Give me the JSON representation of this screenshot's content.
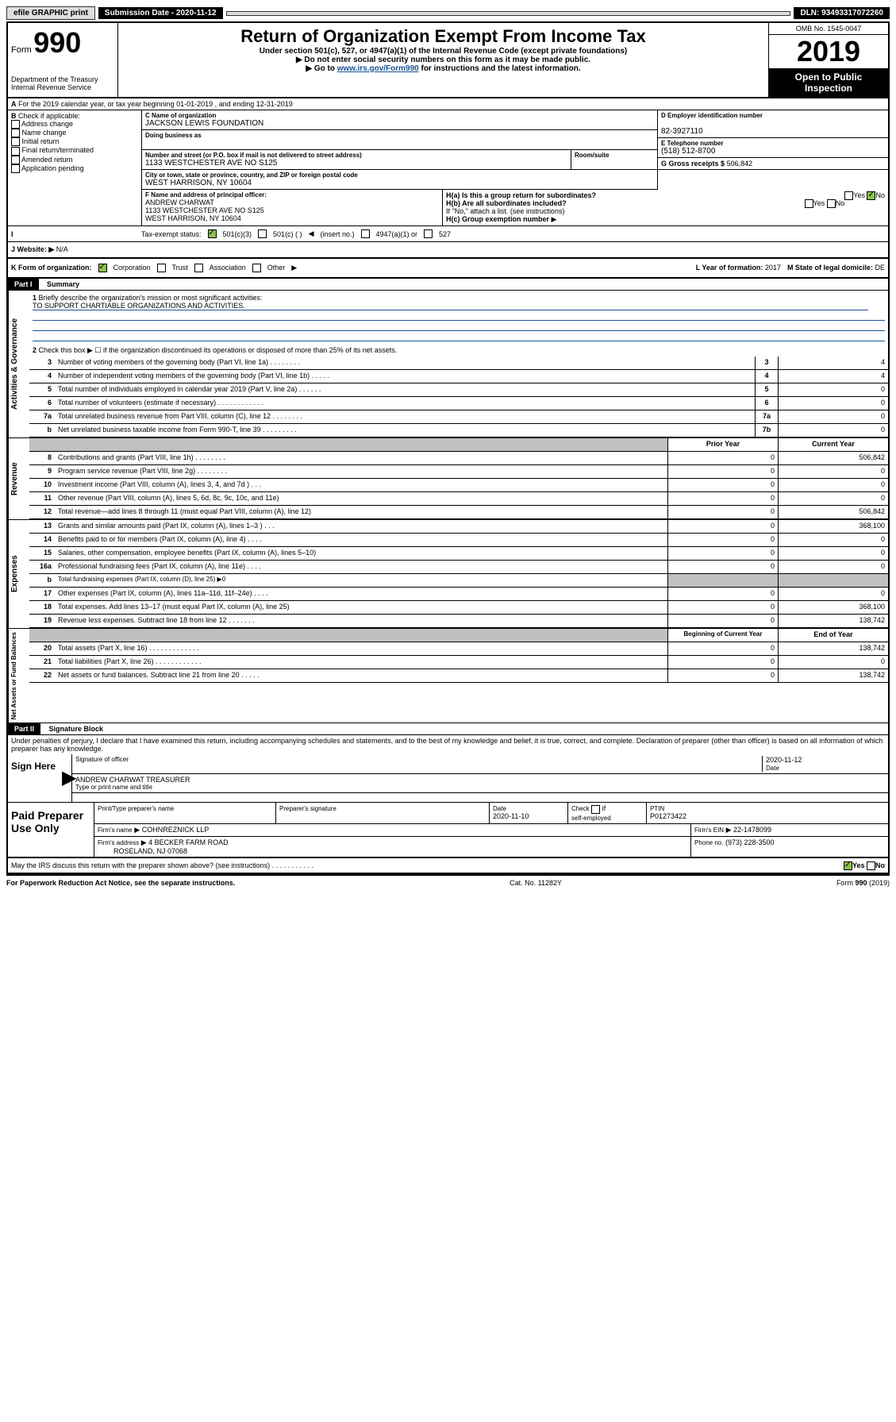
{
  "header": {
    "efile": "efile GRAPHIC print",
    "submission_label": "Submission Date - 2020-11-12",
    "dln": "DLN: 93493317072260",
    "form_label": "Form",
    "form_num": "990",
    "title": "Return of Organization Exempt From Income Tax",
    "subtitle": "Under section 501(c), 527, or 4947(a)(1) of the Internal Revenue Code (except private foundations)",
    "warn1": "Do not enter social security numbers on this form as it may be made public.",
    "warn2_pre": "Go to ",
    "warn2_link": "www.irs.gov/Form990",
    "warn2_post": " for instructions and the latest information.",
    "omb": "OMB No. 1545-0047",
    "year": "2019",
    "open": "Open to Public Inspection",
    "dept": "Department of the Treasury\nInternal Revenue Service"
  },
  "a": {
    "text": "For the 2019 calendar year, or tax year beginning 01-01-2019    , and ending 12-31-2019"
  },
  "b": {
    "label": "Check if applicable:",
    "items": [
      "Address change",
      "Name change",
      "Initial return",
      "Final return/terminated",
      "Amended return",
      "Application pending"
    ]
  },
  "c": {
    "name_lbl": "C Name of organization",
    "name": "JACKSON LEWIS FOUNDATION",
    "dba_lbl": "Doing business as",
    "addr_lbl": "Number and street (or P.O. box if mail is not delivered to street address)",
    "addr": "1133 WESTCHESTER AVE NO S125",
    "room_lbl": "Room/suite",
    "city_lbl": "City or town, state or province, country, and ZIP or foreign postal code",
    "city": "WEST HARRISON, NY  10604"
  },
  "d": {
    "lbl": "D Employer identification number",
    "val": "82-3927110"
  },
  "e": {
    "lbl": "E Telephone number",
    "val": "(518) 512-8700"
  },
  "g": {
    "lbl": "G Gross receipts $",
    "val": "506,842"
  },
  "f": {
    "lbl": "F  Name and address of principal officer:",
    "name": "ANDREW CHARWAT",
    "addr1": "1133 WESTCHESTER AVE NO S125",
    "addr2": "WEST HARRISON, NY  10604"
  },
  "h": {
    "a_lbl": "H(a)  Is this a group return for subordinates?",
    "b_lbl": "H(b)  Are all subordinates included?",
    "b_note": "If \"No,\" attach a list. (see instructions)",
    "c_lbl": "H(c)  Group exemption number",
    "yes": "Yes",
    "no": "No"
  },
  "i": {
    "lbl": "Tax-exempt status:",
    "opts": [
      "501(c)(3)",
      "501(c) (  )",
      "(insert no.)",
      "4947(a)(1) or",
      "527"
    ]
  },
  "j": {
    "lbl": "Website:",
    "val": "N/A"
  },
  "k": {
    "lbl": "K Form of organization:",
    "opts": [
      "Corporation",
      "Trust",
      "Association",
      "Other"
    ]
  },
  "l": {
    "lbl": "L Year of formation:",
    "val": "2017"
  },
  "m": {
    "lbl": "M State of legal domicile:",
    "val": "DE"
  },
  "part1": {
    "hdr": "Part I",
    "title": "Summary",
    "l1_lbl": "Briefly describe the organization's mission or most significant activities:",
    "l1_val": "TO SUPPORT CHARTIABLE ORGANIZATIONS AND ACTIVITIES.",
    "l2": "Check this box ▶ ☐  if the organization discontinued its operations or disposed of more than 25% of its net assets.",
    "lines": [
      {
        "n": "3",
        "t": "Number of voting members of the governing body (Part VI, line 1a)   .    .    .    .    .    .    .    .",
        "b": "3",
        "v": "4"
      },
      {
        "n": "4",
        "t": "Number of independent voting members of the governing body (Part VI, line 1b)    .    .    .    .    .",
        "b": "4",
        "v": "4"
      },
      {
        "n": "5",
        "t": "Total number of individuals employed in calendar year 2019 (Part V, line 2a)    .    .    .    .    .    .",
        "b": "5",
        "v": "0"
      },
      {
        "n": "6",
        "t": "Total number of volunteers (estimate if necessary)    .    .    .    .    .    .    .    .    .    .    .    .",
        "b": "6",
        "v": "0"
      },
      {
        "n": "7a",
        "t": "Total unrelated business revenue from Part VIII, column (C), line 12   .    .    .    .    .    .    .    .",
        "b": "7a",
        "v": "0"
      },
      {
        "n": "b",
        "t": "Net unrelated business taxable income from Form 990-T, line 39   .    .    .    .    .    .    .    .    .",
        "b": "7b",
        "v": "0"
      }
    ],
    "prior": "Prior Year",
    "current": "Current Year",
    "rev": [
      {
        "n": "8",
        "t": "Contributions and grants (Part VIII, line 1h)   .    .    .    .    .    .    .    .",
        "p": "0",
        "c": "506,842"
      },
      {
        "n": "9",
        "t": "Program service revenue (Part VIII, line 2g)   .    .    .    .    .    .    .    .",
        "p": "0",
        "c": "0"
      },
      {
        "n": "10",
        "t": "Investment income (Part VIII, column (A), lines 3, 4, and 7d )   .    .    .",
        "p": "0",
        "c": "0"
      },
      {
        "n": "11",
        "t": "Other revenue (Part VIII, column (A), lines 5, 6d, 8c, 9c, 10c, and 11e)",
        "p": "0",
        "c": "0"
      },
      {
        "n": "12",
        "t": "Total revenue—add lines 8 through 11 (must equal Part VIII, column (A), line 12)",
        "p": "0",
        "c": "506,842"
      }
    ],
    "exp": [
      {
        "n": "13",
        "t": "Grants and similar amounts paid (Part IX, column (A), lines 1–3 )   .    .    .",
        "p": "0",
        "c": "368,100"
      },
      {
        "n": "14",
        "t": "Benefits paid to or for members (Part IX, column (A), line 4)   .    .    .    .",
        "p": "0",
        "c": "0"
      },
      {
        "n": "15",
        "t": "Salaries, other compensation, employee benefits (Part IX, column (A), lines 5–10)",
        "p": "0",
        "c": "0"
      },
      {
        "n": "16a",
        "t": "Professional fundraising fees (Part IX, column (A), line 11e)   .    .    .    .",
        "p": "0",
        "c": "0"
      }
    ],
    "l16b": "Total fundraising expenses (Part IX, column (D), line 25) ▶0",
    "exp2": [
      {
        "n": "17",
        "t": "Other expenses (Part IX, column (A), lines 11a–11d, 11f–24e)   .    .    .    .",
        "p": "0",
        "c": "0"
      },
      {
        "n": "18",
        "t": "Total expenses. Add lines 13–17 (must equal Part IX, column (A), line 25)",
        "p": "0",
        "c": "368,100"
      },
      {
        "n": "19",
        "t": "Revenue less expenses. Subtract line 18 from line 12    .    .    .    .    .    .    .",
        "p": "0",
        "c": "138,742"
      }
    ],
    "begin": "Beginning of Current Year",
    "end": "End of Year",
    "net": [
      {
        "n": "20",
        "t": "Total assets (Part X, line 16)   .    .    .    .    .    .    .    .    .    .    .    .    .",
        "p": "0",
        "c": "138,742"
      },
      {
        "n": "21",
        "t": "Total liabilities (Part X, line 26)   .    .    .    .    .    .    .    .    .    .    .    .",
        "p": "0",
        "c": "0"
      },
      {
        "n": "22",
        "t": "Net assets or fund balances. Subtract line 21 from line 20    .    .    .    .    .",
        "p": "0",
        "c": "138,742"
      }
    ],
    "vtabs": [
      "Activities & Governance",
      "Revenue",
      "Expenses",
      "Net Assets or Fund Balances"
    ]
  },
  "part2": {
    "hdr": "Part II",
    "title": "Signature Block",
    "perjury": "Under penalties of perjury, I declare that I have examined this return, including accompanying schedules and statements, and to the best of my knowledge and belief, it is true, correct, and complete. Declaration of preparer (other than officer) is based on all information of which preparer has any knowledge.",
    "sign": "Sign Here",
    "sig_officer": "Signature of officer",
    "date": "2020-11-12",
    "date_lbl": "Date",
    "officer": "ANDREW CHARWAT TREASURER",
    "type_name": "Type or print name and title",
    "paid": "Paid Preparer Use Only",
    "prep_name_lbl": "Print/Type preparer's name",
    "prep_sig_lbl": "Preparer's signature",
    "prep_date_lbl": "Date",
    "prep_date": "2020-11-10",
    "self_emp": "self-employed",
    "check_if": "Check",
    "ptin_lbl": "PTIN",
    "ptin": "P01273422",
    "firm_name_lbl": "Firm's name",
    "firm_name": "COHNREZNICK LLP",
    "firm_ein_lbl": "Firm's EIN",
    "firm_ein": "22-1478099",
    "firm_addr_lbl": "Firm's address",
    "firm_addr": "4 BECKER FARM ROAD",
    "firm_city": "ROSELAND, NJ  07068",
    "phone_lbl": "Phone no.",
    "phone": "(973) 228-3500",
    "discuss": "May the IRS discuss this return with the preparer shown above? (see instructions)    .    .    .    .    .    .    .    .    .    .    .",
    "yes": "Yes",
    "no": "No"
  },
  "footer": {
    "paperwork": "For Paperwork Reduction Act Notice, see the separate instructions.",
    "cat": "Cat. No. 11282Y",
    "form": "Form 990 (2019)"
  }
}
